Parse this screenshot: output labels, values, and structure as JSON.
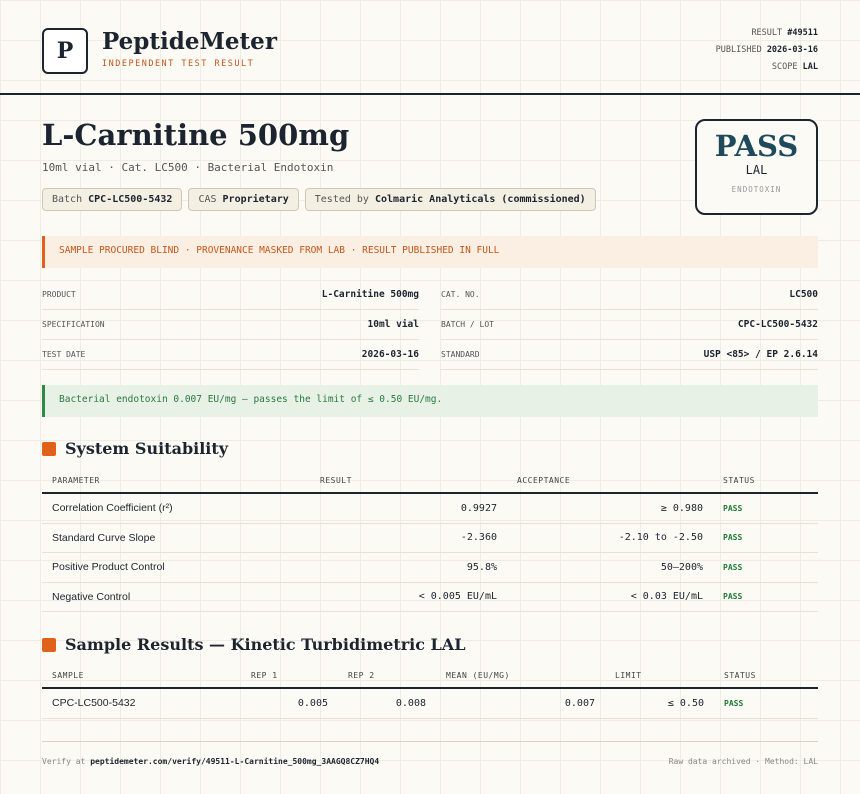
{
  "header": {
    "logo_letter": "P",
    "brand": "PeptideMeter",
    "tagline": "INDEPENDENT TEST RESULT",
    "meta": [
      {
        "label": "RESULT",
        "value": "#49511"
      },
      {
        "label": "PUBLISHED",
        "value": "2026-03-16"
      },
      {
        "label": "SCOPE",
        "value": "LAL"
      }
    ]
  },
  "product": {
    "title": "L-Carnitine 500mg",
    "subtitle": "10ml vial · Cat. LC500 · Bacterial Endotoxin",
    "chips": [
      {
        "label": "Batch",
        "value": "CPC-LC500-5432"
      },
      {
        "label": "CAS",
        "value": "Proprietary"
      },
      {
        "label": "Tested by",
        "value": "Colmaric Analyticals (commissioned)"
      }
    ]
  },
  "badge": {
    "verdict": "PASS",
    "scope": "LAL",
    "category": "ENDOTOXIN"
  },
  "notice": "SAMPLE PROCURED BLIND · PROVENANCE MASKED FROM LAB · RESULT PUBLISHED IN FULL",
  "details": [
    {
      "label": "PRODUCT",
      "value": "L-Carnitine 500mg"
    },
    {
      "label": "CAT. NO.",
      "value": "LC500"
    },
    {
      "label": "SPECIFICATION",
      "value": "10ml vial"
    },
    {
      "label": "BATCH / LOT",
      "value": "CPC-LC500-5432"
    },
    {
      "label": "TEST DATE",
      "value": "2026-03-16"
    },
    {
      "label": "STANDARD",
      "value": "USP <85> / EP 2.6.14"
    }
  ],
  "summary": "Bacterial endotoxin 0.007 EU/mg — passes the limit of ≤ 0.50 EU/mg.",
  "suitability": {
    "title": "System Suitability",
    "columns": [
      "PARAMETER",
      "RESULT",
      "ACCEPTANCE",
      "STATUS"
    ],
    "rows": [
      [
        "Correlation Coefficient (r²)",
        "0.9927",
        "≥ 0.980",
        "PASS"
      ],
      [
        "Standard Curve Slope",
        "-2.360",
        "-2.10 to -2.50",
        "PASS"
      ],
      [
        "Positive Product Control",
        "95.8%",
        "50–200%",
        "PASS"
      ],
      [
        "Negative Control",
        "< 0.005 EU/mL",
        "< 0.03 EU/mL",
        "PASS"
      ]
    ]
  },
  "samples": {
    "title": "Sample Results — Kinetic Turbidimetric LAL",
    "columns": [
      "SAMPLE",
      "REP 1",
      "REP 2",
      "MEAN (EU/MG)",
      "LIMIT",
      "STATUS"
    ],
    "rows": [
      [
        "CPC-LC500-5432",
        "0.005",
        "0.008",
        "0.007",
        "≤ 0.50",
        "PASS"
      ]
    ]
  },
  "footer": {
    "verify_prefix": "Verify at",
    "verify_url": "peptidemeter.com/verify/49511-L-Carnitine_500mg_3AAGQ8CZ7HQ4",
    "note": "Raw data archived · Method: LAL"
  }
}
